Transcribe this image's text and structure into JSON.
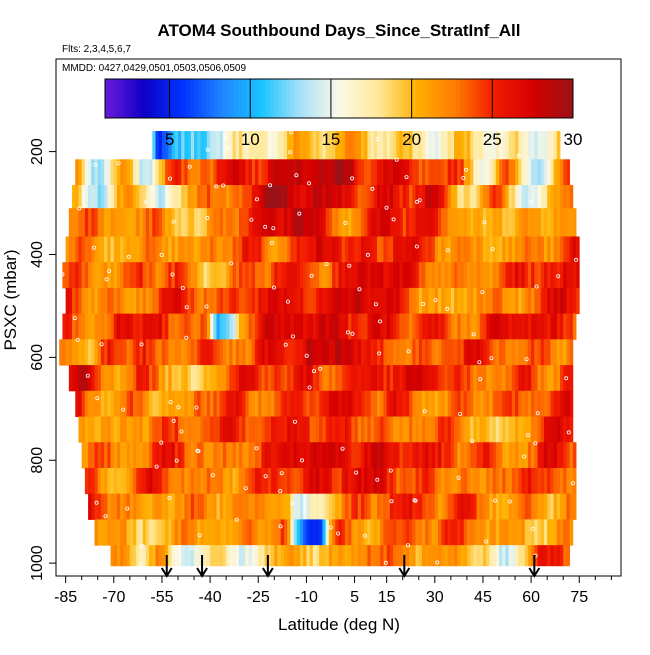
{
  "colors": {
    "palette": [
      "#6a1ad8",
      "#0e00c8",
      "#0033ff",
      "#1f86ff",
      "#18c4ff",
      "#a6e0f6",
      "#fbf9e8",
      "#ffe99a",
      "#ffb000",
      "#ff7a00",
      "#f21a00",
      "#d40000",
      "#9a1216"
    ],
    "axis": "#000000",
    "marker": "#ffffff",
    "arrow": "#000000"
  },
  "chart_data": {
    "type": "heatmap",
    "title": "ATOM4 Southbound Days_Since_StratInf_All",
    "flights_label": "Flts: 2,3,4,5,6,7",
    "dates_label": "MMDD: 0427,0429,0501,0503,0506,0509",
    "xlabel": "Latitude (deg N)",
    "ylabel": "PSXC (mbar)",
    "xlim": [
      -88,
      88
    ],
    "ylim": [
      1025,
      20
    ],
    "x_ticks": [
      -85,
      -70,
      -55,
      -40,
      -25,
      -10,
      5,
      15,
      30,
      45,
      60,
      75
    ],
    "x_tick_labels": [
      "-85",
      "-70",
      "-55",
      "-40",
      "-25",
      "-10",
      "5",
      "15",
      "30",
      "45",
      "60",
      "75"
    ],
    "y_ticks": [
      200,
      400,
      600,
      800,
      1000
    ],
    "y_tick_labels": [
      "200",
      "400",
      "600",
      "800",
      "1000"
    ],
    "colorbar": {
      "range": [
        1,
        30
      ],
      "ticks": [
        5,
        10,
        15,
        20,
        25,
        30
      ],
      "tick_labels": [
        "5",
        "10",
        "15",
        "20",
        "25",
        "30"
      ]
    },
    "pressure_bands": [
      {
        "p_top": 160,
        "p_bot": 215,
        "lat_min": -58,
        "lat_max": 69,
        "base": 19,
        "features": [
          {
            "lat": -55,
            "w": 3,
            "v": 4
          },
          {
            "lat": -50,
            "w": 4,
            "v": 11
          },
          {
            "lat": -42,
            "w": 6,
            "v": 12
          },
          {
            "lat": -25,
            "w": 6,
            "v": 17
          },
          {
            "lat": 50,
            "w": 6,
            "v": 16
          },
          {
            "lat": 62,
            "w": 5,
            "v": 14
          }
        ]
      },
      {
        "p_top": 215,
        "p_bot": 265,
        "lat_min": -82,
        "lat_max": 72,
        "base": 27,
        "features": [
          {
            "lat": -75,
            "w": 7,
            "v": 13
          },
          {
            "lat": -60,
            "w": 6,
            "v": 14
          },
          {
            "lat": -45,
            "w": 6,
            "v": 23
          },
          {
            "lat": -10,
            "w": 8,
            "v": 28
          },
          {
            "lat": 30,
            "w": 6,
            "v": 23
          },
          {
            "lat": 45,
            "w": 6,
            "v": 16
          },
          {
            "lat": 62,
            "w": 8,
            "v": 14
          }
        ]
      },
      {
        "p_top": 265,
        "p_bot": 310,
        "lat_min": -83,
        "lat_max": 73,
        "base": 27,
        "features": [
          {
            "lat": -75,
            "w": 8,
            "v": 13
          },
          {
            "lat": -55,
            "w": 8,
            "v": 14
          },
          {
            "lat": -35,
            "w": 6,
            "v": 22
          },
          {
            "lat": -5,
            "w": 8,
            "v": 28
          },
          {
            "lat": 40,
            "w": 8,
            "v": 18
          },
          {
            "lat": 60,
            "w": 8,
            "v": 14
          }
        ]
      },
      {
        "p_top": 310,
        "p_bot": 365,
        "lat_min": -84,
        "lat_max": 74,
        "base": 24,
        "features": [
          {
            "lat": -70,
            "w": 8,
            "v": 21
          },
          {
            "lat": -45,
            "w": 8,
            "v": 19
          },
          {
            "lat": -12,
            "w": 7,
            "v": 29
          },
          {
            "lat": 15,
            "w": 6,
            "v": 27
          },
          {
            "lat": 45,
            "w": 10,
            "v": 20
          },
          {
            "lat": 65,
            "w": 8,
            "v": 21
          }
        ]
      },
      {
        "p_top": 365,
        "p_bot": 415,
        "lat_min": -85,
        "lat_max": 75,
        "base": 23,
        "features": [
          {
            "lat": -70,
            "w": 8,
            "v": 20
          },
          {
            "lat": -45,
            "w": 8,
            "v": 21
          },
          {
            "lat": -5,
            "w": 10,
            "v": 27
          },
          {
            "lat": 20,
            "w": 6,
            "v": 26
          },
          {
            "lat": 50,
            "w": 10,
            "v": 21
          }
        ]
      },
      {
        "p_top": 415,
        "p_bot": 465,
        "lat_min": -86,
        "lat_max": 75,
        "base": 24,
        "features": [
          {
            "lat": -72,
            "w": 6,
            "v": 21
          },
          {
            "lat": -40,
            "w": 8,
            "v": 19
          },
          {
            "lat": -15,
            "w": 8,
            "v": 26
          },
          {
            "lat": 10,
            "w": 8,
            "v": 27
          },
          {
            "lat": 40,
            "w": 8,
            "v": 22
          },
          {
            "lat": 65,
            "w": 6,
            "v": 25
          }
        ]
      },
      {
        "p_top": 465,
        "p_bot": 515,
        "lat_min": -85,
        "lat_max": 75,
        "base": 25,
        "features": [
          {
            "lat": -65,
            "w": 8,
            "v": 21
          },
          {
            "lat": -40,
            "w": 8,
            "v": 23
          },
          {
            "lat": -20,
            "w": 8,
            "v": 27
          },
          {
            "lat": 5,
            "w": 8,
            "v": 28
          },
          {
            "lat": 35,
            "w": 8,
            "v": 20
          },
          {
            "lat": 55,
            "w": 8,
            "v": 21
          }
        ]
      },
      {
        "p_top": 515,
        "p_bot": 565,
        "lat_min": -86,
        "lat_max": 74,
        "base": 26,
        "features": [
          {
            "lat": -75,
            "w": 6,
            "v": 21
          },
          {
            "lat": -50,
            "w": 6,
            "v": 23
          },
          {
            "lat": -37,
            "w": 3,
            "v": 9
          },
          {
            "lat": -34,
            "w": 3,
            "v": 13
          },
          {
            "lat": -10,
            "w": 10,
            "v": 27
          },
          {
            "lat": 40,
            "w": 8,
            "v": 22
          },
          {
            "lat": 65,
            "w": 8,
            "v": 26
          }
        ]
      },
      {
        "p_top": 565,
        "p_bot": 615,
        "lat_min": -87,
        "lat_max": 73,
        "base": 25,
        "features": [
          {
            "lat": -78,
            "w": 6,
            "v": 20
          },
          {
            "lat": -55,
            "w": 6,
            "v": 23
          },
          {
            "lat": -30,
            "w": 6,
            "v": 22
          },
          {
            "lat": 0,
            "w": 8,
            "v": 28
          },
          {
            "lat": 30,
            "w": 8,
            "v": 23
          },
          {
            "lat": 55,
            "w": 8,
            "v": 22
          }
        ]
      },
      {
        "p_top": 615,
        "p_bot": 665,
        "lat_min": -84,
        "lat_max": 73,
        "base": 25,
        "features": [
          {
            "lat": -70,
            "w": 6,
            "v": 21
          },
          {
            "lat": -45,
            "w": 8,
            "v": 19
          },
          {
            "lat": -20,
            "w": 8,
            "v": 24
          },
          {
            "lat": 10,
            "w": 10,
            "v": 26
          },
          {
            "lat": 45,
            "w": 8,
            "v": 22
          }
        ]
      },
      {
        "p_top": 665,
        "p_bot": 715,
        "lat_min": -82,
        "lat_max": 73,
        "base": 24,
        "features": [
          {
            "lat": -72,
            "w": 6,
            "v": 21
          },
          {
            "lat": -50,
            "w": 6,
            "v": 20
          },
          {
            "lat": -25,
            "w": 6,
            "v": 22
          },
          {
            "lat": 0,
            "w": 8,
            "v": 27
          },
          {
            "lat": 30,
            "w": 8,
            "v": 21
          },
          {
            "lat": 55,
            "w": 8,
            "v": 24
          }
        ]
      },
      {
        "p_top": 715,
        "p_bot": 765,
        "lat_min": -81,
        "lat_max": 73,
        "base": 24,
        "features": [
          {
            "lat": -70,
            "w": 8,
            "v": 21
          },
          {
            "lat": -45,
            "w": 8,
            "v": 23
          },
          {
            "lat": -15,
            "w": 10,
            "v": 26
          },
          {
            "lat": 20,
            "w": 8,
            "v": 22
          },
          {
            "lat": 50,
            "w": 8,
            "v": 19
          }
        ]
      },
      {
        "p_top": 765,
        "p_bot": 815,
        "lat_min": -80,
        "lat_max": 74,
        "base": 25,
        "features": [
          {
            "lat": -65,
            "w": 8,
            "v": 21
          },
          {
            "lat": -40,
            "w": 8,
            "v": 22
          },
          {
            "lat": -10,
            "w": 10,
            "v": 27
          },
          {
            "lat": 25,
            "w": 8,
            "v": 26
          },
          {
            "lat": 55,
            "w": 8,
            "v": 21
          }
        ]
      },
      {
        "p_top": 815,
        "p_bot": 865,
        "lat_min": -79,
        "lat_max": 74,
        "base": 24,
        "features": [
          {
            "lat": -70,
            "w": 6,
            "v": 20
          },
          {
            "lat": -45,
            "w": 8,
            "v": 22
          },
          {
            "lat": -20,
            "w": 8,
            "v": 25
          },
          {
            "lat": 10,
            "w": 10,
            "v": 27
          },
          {
            "lat": 45,
            "w": 8,
            "v": 22
          },
          {
            "lat": 65,
            "w": 6,
            "v": 24
          }
        ]
      },
      {
        "p_top": 865,
        "p_bot": 915,
        "lat_min": -78,
        "lat_max": 74,
        "base": 23,
        "features": [
          {
            "lat": -60,
            "w": 8,
            "v": 21
          },
          {
            "lat": -30,
            "w": 8,
            "v": 22
          },
          {
            "lat": -12,
            "w": 4,
            "v": 14
          },
          {
            "lat": -5,
            "w": 4,
            "v": 17
          },
          {
            "lat": 20,
            "w": 8,
            "v": 26
          },
          {
            "lat": 50,
            "w": 8,
            "v": 21
          }
        ]
      },
      {
        "p_top": 915,
        "p_bot": 965,
        "lat_min": -76,
        "lat_max": 73,
        "base": 22,
        "features": [
          {
            "lat": -62,
            "w": 6,
            "v": 19
          },
          {
            "lat": -35,
            "w": 8,
            "v": 21
          },
          {
            "lat": -12,
            "w": 3,
            "v": 11
          },
          {
            "lat": -9,
            "w": 3,
            "v": 4
          },
          {
            "lat": -5,
            "w": 3,
            "v": 2
          },
          {
            "lat": -2,
            "w": 3,
            "v": 29
          },
          {
            "lat": 20,
            "w": 8,
            "v": 24
          },
          {
            "lat": 50,
            "w": 8,
            "v": 21
          }
        ]
      },
      {
        "p_top": 965,
        "p_bot": 1005,
        "lat_min": -71,
        "lat_max": 72,
        "base": 21,
        "features": [
          {
            "lat": -55,
            "w": 3,
            "v": 24
          },
          {
            "lat": -48,
            "w": 6,
            "v": 14
          },
          {
            "lat": -30,
            "w": 8,
            "v": 15
          },
          {
            "lat": -15,
            "w": 6,
            "v": 21
          },
          {
            "lat": 10,
            "w": 6,
            "v": 23
          },
          {
            "lat": 35,
            "w": 6,
            "v": 22
          },
          {
            "lat": 52,
            "w": 5,
            "v": 14
          },
          {
            "lat": 65,
            "w": 6,
            "v": 26
          }
        ]
      }
    ],
    "arrows_lat": [
      -53.5,
      -42.5,
      -22,
      20.5,
      61
    ]
  }
}
